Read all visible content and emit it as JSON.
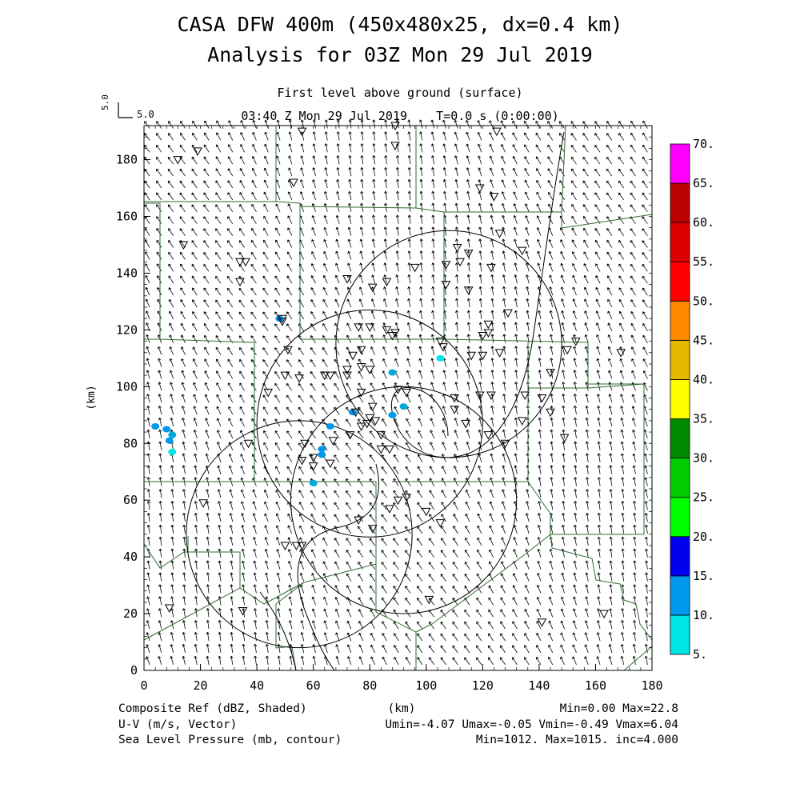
{
  "title": "CASA DFW 400m (450x480x25, dx=0.4 km)",
  "subtitle": "Analysis for 03Z Mon 29 Jul 2019",
  "level_label": "First level above ground (surface)",
  "time_label": "03:40 Z Mon 29 Jul 2019    T=0.0 s (0:00:00)",
  "reference_vector_label": "5.0",
  "footer": {
    "left": [
      "Composite Ref (dBZ, Shaded)",
      "U-V (m/s, Vector)",
      "Sea Level Pressure (mb, contour)"
    ],
    "center": "(km)",
    "right": [
      "Min=0.00 Max=22.8",
      "Umin=-4.07 Umax=-0.05 Vmin=-0.49 Vmax=6.04",
      "Min=1012. Max=1015. inc=4.000"
    ]
  },
  "colorbar": {
    "labels": [
      "5.",
      "10.",
      "15.",
      "20.",
      "25.",
      "30.",
      "35.",
      "40.",
      "45.",
      "50.",
      "55.",
      "60.",
      "65.",
      "70."
    ],
    "colors": [
      "#00e5e5",
      "#0099ee",
      "#0000ee",
      "#00ff00",
      "#00cc00",
      "#008800",
      "#ffff00",
      "#e5b800",
      "#ff8800",
      "#ff0000",
      "#dd0000",
      "#bb0000",
      "#ff00ff"
    ]
  },
  "chart_data": {
    "type": "map",
    "xlabel": "",
    "ylabel": "(km)",
    "xlim": [
      0,
      180
    ],
    "ylim": [
      0,
      192
    ],
    "xticks": [
      0,
      20,
      40,
      60,
      80,
      100,
      120,
      140,
      160,
      180
    ],
    "yticks": [
      0,
      20,
      40,
      60,
      80,
      100,
      120,
      140,
      160,
      180
    ],
    "radar_rings": [
      {
        "cx": 108,
        "cy": 115,
        "r": 40
      },
      {
        "cx": 80,
        "cy": 87,
        "r": 40
      },
      {
        "cx": 55,
        "cy": 48,
        "r": 40
      },
      {
        "cx": 92,
        "cy": 60,
        "r": 40
      }
    ],
    "stations": [
      [
        12,
        180
      ],
      [
        56,
        190
      ],
      [
        89,
        192
      ],
      [
        89,
        185
      ],
      [
        53,
        172
      ],
      [
        119,
        170
      ],
      [
        124,
        167
      ],
      [
        125,
        190
      ],
      [
        126,
        154
      ],
      [
        134,
        148
      ],
      [
        111,
        149
      ],
      [
        112,
        144
      ],
      [
        115,
        147
      ],
      [
        107,
        143
      ],
      [
        123,
        142
      ],
      [
        96,
        142
      ],
      [
        36,
        144
      ],
      [
        34,
        144
      ],
      [
        34,
        137
      ],
      [
        72,
        138
      ],
      [
        81,
        135
      ],
      [
        86,
        137
      ],
      [
        107,
        136
      ],
      [
        115,
        134
      ],
      [
        129,
        126
      ],
      [
        76,
        121
      ],
      [
        80,
        121
      ],
      [
        86,
        120
      ],
      [
        89,
        119
      ],
      [
        88,
        118
      ],
      [
        120,
        118
      ],
      [
        122,
        119
      ],
      [
        122,
        122
      ],
      [
        49,
        124
      ],
      [
        49,
        123
      ],
      [
        105,
        116
      ],
      [
        106,
        114
      ],
      [
        153,
        116
      ],
      [
        51,
        113
      ],
      [
        77,
        113
      ],
      [
        74,
        111
      ],
      [
        116,
        111
      ],
      [
        120,
        111
      ],
      [
        126,
        112
      ],
      [
        150,
        113
      ],
      [
        169,
        112
      ],
      [
        66,
        104
      ],
      [
        64,
        104
      ],
      [
        72,
        106
      ],
      [
        80,
        106
      ],
      [
        77,
        107
      ],
      [
        72,
        104
      ],
      [
        55,
        103
      ],
      [
        50,
        104
      ],
      [
        44,
        98
      ],
      [
        110,
        96
      ],
      [
        135,
        97
      ],
      [
        144,
        105
      ],
      [
        141,
        96
      ],
      [
        123,
        97
      ],
      [
        119,
        97
      ],
      [
        77,
        98
      ],
      [
        81,
        93
      ],
      [
        93,
        98
      ],
      [
        90,
        99
      ],
      [
        75,
        91
      ],
      [
        82,
        88
      ],
      [
        79,
        87
      ],
      [
        77,
        86
      ],
      [
        80,
        89
      ],
      [
        110,
        92
      ],
      [
        144,
        91
      ],
      [
        149,
        82
      ],
      [
        134,
        88
      ],
      [
        128,
        80
      ],
      [
        122,
        83
      ],
      [
        114,
        87
      ],
      [
        73,
        83
      ],
      [
        67,
        81
      ],
      [
        57,
        80
      ],
      [
        56,
        74
      ],
      [
        60,
        72
      ],
      [
        66,
        73
      ],
      [
        60,
        75
      ],
      [
        84,
        78
      ],
      [
        87,
        78
      ],
      [
        37,
        80
      ],
      [
        84,
        83
      ],
      [
        93,
        61
      ],
      [
        100,
        56
      ],
      [
        90,
        60
      ],
      [
        87,
        57
      ],
      [
        105,
        52
      ],
      [
        76,
        53
      ],
      [
        81,
        50
      ],
      [
        54,
        44
      ],
      [
        56,
        44
      ],
      [
        50,
        44
      ],
      [
        21,
        59
      ],
      [
        35,
        21
      ],
      [
        9,
        22
      ],
      [
        101,
        25
      ],
      [
        141,
        17
      ],
      [
        163,
        20
      ],
      [
        14,
        150
      ],
      [
        19,
        183
      ]
    ],
    "reflectivity_blobs": [
      [
        4,
        86,
        "#0099ee"
      ],
      [
        8,
        85,
        "#0099ee"
      ],
      [
        10,
        83,
        "#00aadd"
      ],
      [
        9,
        81,
        "#0099ee"
      ],
      [
        10,
        77,
        "#00e5e5"
      ],
      [
        48,
        124,
        "#0099ee"
      ],
      [
        74,
        91,
        "#0099ee"
      ],
      [
        88,
        90,
        "#0099ee"
      ],
      [
        92,
        93,
        "#00aadd"
      ],
      [
        63,
        78,
        "#0099ee"
      ],
      [
        63,
        76,
        "#0099ee"
      ],
      [
        66,
        86,
        "#0099ee"
      ],
      [
        60,
        66,
        "#00aadd"
      ],
      [
        88,
        105,
        "#00aadd"
      ],
      [
        105,
        110,
        "#00e5e5"
      ]
    ]
  }
}
